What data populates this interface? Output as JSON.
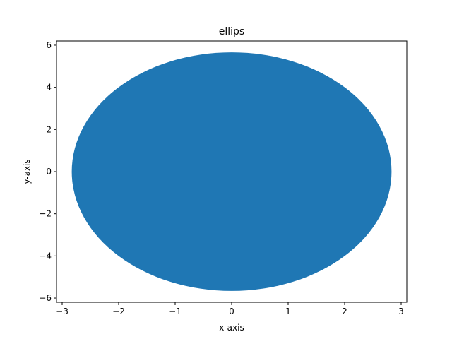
{
  "chart_data": {
    "type": "area",
    "title": "ellips",
    "xlabel": "x-axis",
    "ylabel": "y-axis",
    "xlim": [
      -3.1,
      3.1
    ],
    "ylim": [
      -6.2,
      6.2
    ],
    "xticks": [
      -3,
      -2,
      -1,
      0,
      1,
      2,
      3
    ],
    "yticks": [
      -6,
      -4,
      -2,
      0,
      2,
      4,
      6
    ],
    "grid": false,
    "series": [
      {
        "shape": "ellipse",
        "center": [
          0,
          0
        ],
        "semi_axes": [
          2.83,
          5.66
        ],
        "color": "#1f77b4"
      }
    ]
  }
}
